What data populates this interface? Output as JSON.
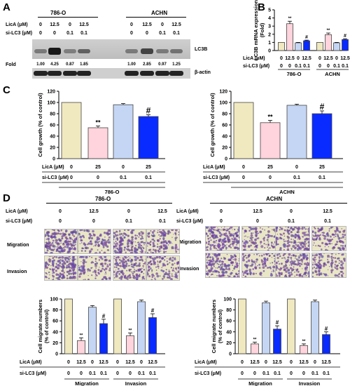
{
  "panel_labels": [
    "A",
    "B",
    "C",
    "D"
  ],
  "colors": {
    "control": "#f0e9c0",
    "licA": "#ffd4dc",
    "siLC3": "#c5d6f5",
    "combo": "#0a2bff",
    "edge": "#444"
  },
  "panel_a": {
    "cell_lines": [
      "786-O",
      "ACHN"
    ],
    "row_labels": [
      "LicA (μM)",
      "si-LC3 (μM)"
    ],
    "licA_values": [
      "0",
      "12.5",
      "0",
      "12.5",
      "0",
      "12.5",
      "0",
      "12.5"
    ],
    "siLC3_values": [
      "0",
      "0",
      "0.1",
      "0.1",
      "0",
      "0",
      "0.1",
      "0.1"
    ],
    "fold_label": "Fold",
    "fold_values": [
      "1.00",
      "4.25",
      "0.87",
      "1.85",
      "1.00",
      "2.85",
      "0.97",
      "1.25"
    ],
    "band_labels": [
      "LC3B",
      "β-actin"
    ]
  },
  "panel_b": {
    "group_labels": [
      "786-O",
      "ACHN"
    ]
  },
  "panel_c": {
    "group_labels": [
      "786-O",
      "ACHN"
    ]
  },
  "panel_d": {
    "cell_lines": [
      "786-O",
      "ACHN"
    ],
    "row_labels": [
      "LicA (μM)",
      "si-LC3 (μM)"
    ],
    "licA_values": [
      "0",
      "12.5",
      "0",
      "12.5"
    ],
    "siLC3_values": [
      "0",
      "0",
      "0.1",
      "0.1"
    ],
    "image_rows": [
      "Migration",
      "Invasion"
    ]
  },
  "chart_data": [
    {
      "type": "bar",
      "panel": "B",
      "ylabel": "LC3B mRNA expression (Fold)",
      "ylim": [
        0,
        5
      ],
      "yticks": [
        "0",
        "1",
        "2",
        "3",
        "4",
        "5"
      ],
      "row_labels": [
        "LicA (μM)",
        "si-LC3 (μM)"
      ],
      "groups": [
        "786-O",
        "ACHN"
      ],
      "licA": [
        "0",
        "12.5",
        "0",
        "12.5",
        "0",
        "12.5",
        "0",
        "12.5"
      ],
      "siLC3": [
        "0",
        "0",
        "0.1",
        "0.1",
        "0",
        "0",
        "0.1",
        "0.1"
      ],
      "values": [
        1.0,
        3.3,
        0.95,
        1.2,
        1.0,
        1.95,
        0.95,
        1.35
      ],
      "errors": [
        0,
        0.3,
        0.05,
        0.08,
        0,
        0.2,
        0.05,
        0.1
      ],
      "annotations": [
        "",
        "**",
        "",
        "#",
        "",
        "**",
        "",
        "#"
      ]
    },
    {
      "type": "bar",
      "panel": "C-786-O",
      "ylabel": "Cell growth (% of control)",
      "ylim": [
        0,
        120
      ],
      "yticks": [
        "0",
        "20",
        "40",
        "60",
        "80",
        "100",
        "120"
      ],
      "row_labels": [
        "LicA (μM)",
        "si-LC3 (μM)"
      ],
      "group": "786-O",
      "licA": [
        "0",
        "25",
        "0",
        "25"
      ],
      "siLC3": [
        "0",
        "0",
        "0.1",
        "0.1"
      ],
      "values": [
        100,
        55,
        96,
        75
      ],
      "errors": [
        0,
        3,
        2,
        3
      ],
      "annotations": [
        "",
        "**",
        "",
        "#"
      ]
    },
    {
      "type": "bar",
      "panel": "C-ACHN",
      "ylabel": "Cell growth (% of control)",
      "ylim": [
        0,
        120
      ],
      "yticks": [
        "0",
        "20",
        "40",
        "60",
        "80",
        "100",
        "120"
      ],
      "row_labels": [
        "LicA (μM)",
        "si-LC3 (μM)"
      ],
      "group": "ACHN",
      "licA": [
        "0",
        "25",
        "0",
        "25"
      ],
      "siLC3": [
        "0",
        "0",
        "0.1",
        "0.1"
      ],
      "values": [
        100,
        64,
        95,
        80
      ],
      "errors": [
        0,
        4,
        2,
        5
      ],
      "annotations": [
        "",
        "**",
        "",
        "#"
      ]
    },
    {
      "type": "bar",
      "panel": "D-786-O",
      "ylabel": "Cell migrate numbers (% of control)",
      "ylim": [
        0,
        100
      ],
      "yticks": [
        "0",
        "20",
        "40",
        "60",
        "80",
        "100"
      ],
      "row_labels": [
        "LicA (μM)",
        "si-LC3 (μM)"
      ],
      "groups": [
        "Migration",
        "Invasion"
      ],
      "licA": [
        "0",
        "12.5",
        "0",
        "12.5",
        "0",
        "12.5",
        "0",
        "12.5"
      ],
      "siLC3": [
        "0",
        "0",
        "0.1",
        "0.1",
        "0",
        "0",
        "0.1",
        "0.1"
      ],
      "values": [
        100,
        24,
        85,
        55,
        100,
        33,
        95,
        66
      ],
      "errors": [
        0,
        5,
        3,
        8,
        0,
        5,
        3,
        7
      ],
      "annotations": [
        "",
        "**",
        "",
        "#",
        "",
        "**",
        "",
        "#"
      ]
    },
    {
      "type": "bar",
      "panel": "D-ACHN",
      "ylabel": "Cell migrate numbers (% of control)",
      "ylim": [
        0,
        100
      ],
      "yticks": [
        "0",
        "20",
        "40",
        "60",
        "80",
        "100"
      ],
      "row_labels": [
        "LicA (μM)",
        "si-LC3 (μM)"
      ],
      "groups": [
        "Migration",
        "Invasion"
      ],
      "licA": [
        "0",
        "12.5",
        "0",
        "12.5",
        "0",
        "12.5",
        "0",
        "12.5"
      ],
      "siLC3": [
        "0",
        "0",
        "0.1",
        "0.1",
        "0",
        "0",
        "0.1",
        "0.1"
      ],
      "values": [
        100,
        18,
        93,
        45,
        100,
        15,
        95,
        35
      ],
      "errors": [
        0,
        3,
        3,
        6,
        0,
        3,
        3,
        5
      ],
      "annotations": [
        "",
        "**",
        "",
        "#",
        "",
        "**",
        "",
        "#"
      ]
    }
  ]
}
